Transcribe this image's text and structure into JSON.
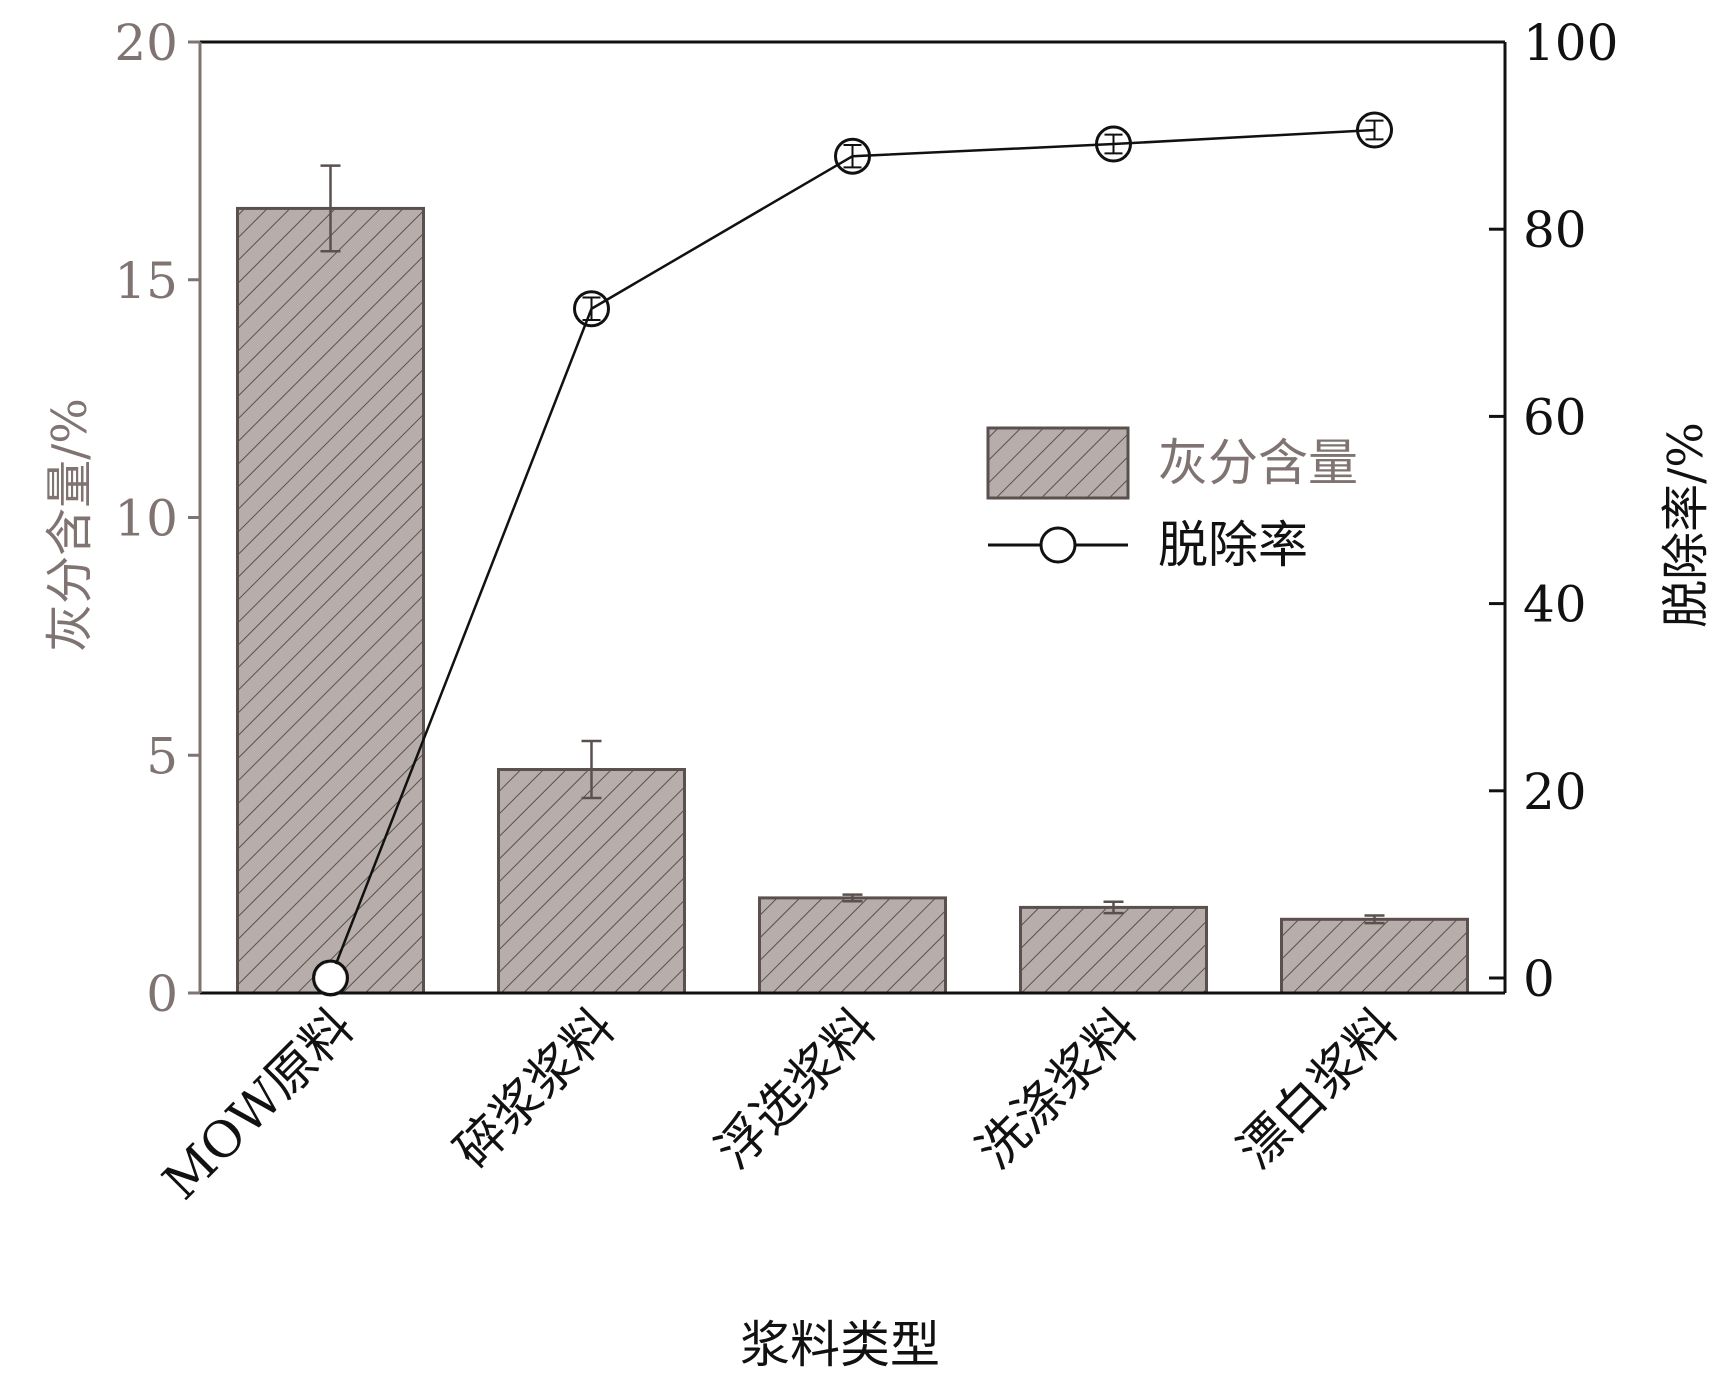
{
  "chart_data": {
    "type": "bar",
    "categories": [
      "MOW原料",
      "碎浆浆料",
      "浮选浆料",
      "洗涤浆料",
      "漂白浆料"
    ],
    "xlabel": "浆料类型",
    "ylabel_left": "灰分含量/%",
    "ylabel_right": "脱除率/%",
    "ylim_left": [
      0,
      20
    ],
    "ylim_right": [
      0,
      100
    ],
    "yticks_left": [
      "0",
      "5",
      "10",
      "15",
      "20"
    ],
    "yticks_right": [
      "0",
      "20",
      "40",
      "60",
      "80",
      "100"
    ],
    "series": [
      {
        "name": "灰分含量",
        "type": "bar",
        "axis": "left",
        "values": [
          16.5,
          4.7,
          2.0,
          1.8,
          1.55
        ],
        "errors": [
          0.9,
          0.6,
          0.07,
          0.12,
          0.08
        ]
      },
      {
        "name": "脱除率",
        "type": "line",
        "axis": "right",
        "values": [
          0,
          71.5,
          87.8,
          89.1,
          90.6
        ],
        "errors": [
          0,
          1.2,
          1.2,
          1.0,
          1.0
        ]
      }
    ],
    "legend_position": "right-middle",
    "grid": false,
    "colors": {
      "bar_fill": "#b7aeab",
      "bar_hatch": "#5a504d",
      "bar_edge": "#5a504d",
      "left_axis_text": "#7f7472",
      "line": "#111111"
    }
  }
}
